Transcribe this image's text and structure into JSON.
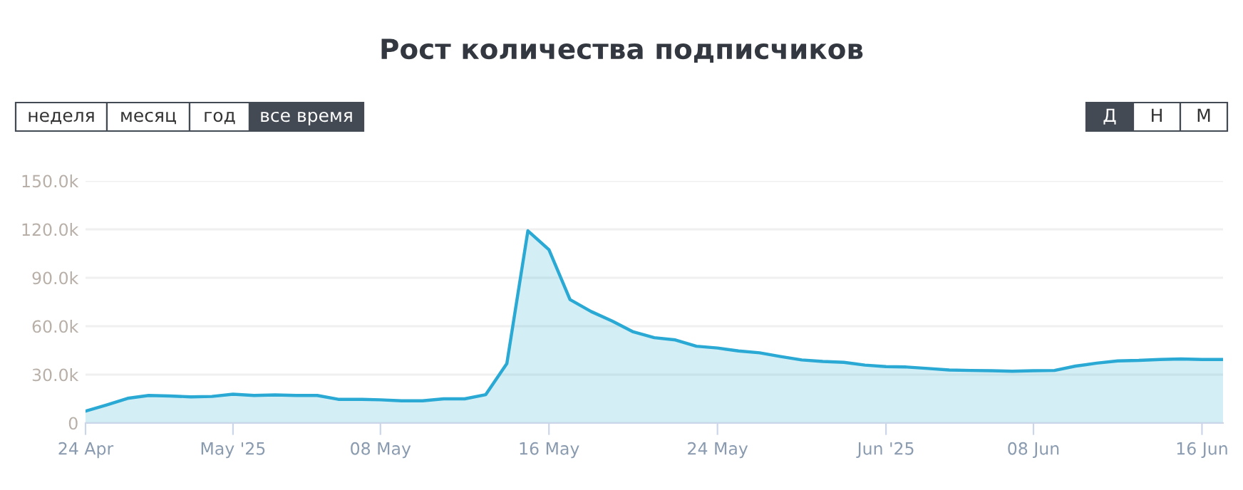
{
  "chart_data": {
    "type": "area",
    "title": "Рост количества подписчиков",
    "x": [
      "2025-04-24",
      "2025-04-25",
      "2025-04-26",
      "2025-04-27",
      "2025-04-28",
      "2025-04-29",
      "2025-04-30",
      "2025-05-01",
      "2025-05-02",
      "2025-05-03",
      "2025-05-04",
      "2025-05-05",
      "2025-05-06",
      "2025-05-07",
      "2025-05-08",
      "2025-05-09",
      "2025-05-10",
      "2025-05-11",
      "2025-05-12",
      "2025-05-13",
      "2025-05-14",
      "2025-05-15",
      "2025-05-16",
      "2025-05-17",
      "2025-05-18",
      "2025-05-19",
      "2025-05-20",
      "2025-05-21",
      "2025-05-22",
      "2025-05-23",
      "2025-05-24",
      "2025-05-25",
      "2025-05-26",
      "2025-05-27",
      "2025-05-28",
      "2025-05-29",
      "2025-05-30",
      "2025-05-31",
      "2025-06-01",
      "2025-06-02",
      "2025-06-03",
      "2025-06-04",
      "2025-06-05",
      "2025-06-06",
      "2025-06-07",
      "2025-06-08",
      "2025-06-09",
      "2025-06-10",
      "2025-06-11",
      "2025-06-12",
      "2025-06-13",
      "2025-06-14",
      "2025-06-15",
      "2025-06-16",
      "2025-06-17"
    ],
    "series": [
      {
        "color": "#29a9d3",
        "values": [
          7400,
          11200,
          15300,
          17100,
          16800,
          16200,
          16500,
          17900,
          17100,
          17400,
          17100,
          17100,
          14700,
          14700,
          14400,
          13800,
          13800,
          15000,
          15000,
          17600,
          36800,
          119100,
          107400,
          76500,
          69100,
          63200,
          56500,
          52900,
          51500,
          47600,
          46500,
          44700,
          43500,
          41200,
          39100,
          38200,
          37600,
          35900,
          35000,
          34700,
          33800,
          32900,
          32600,
          32400,
          32100,
          32400,
          32600,
          35300,
          37100,
          38500,
          38800,
          39400,
          39700,
          39400,
          39400
        ]
      }
    ],
    "xlim": [
      "2025-04-24",
      "2025-06-17"
    ],
    "xticks": [
      {
        "value": "2025-04-24",
        "label": "24 Apr"
      },
      {
        "value": "2025-05-01",
        "label": "May '25"
      },
      {
        "value": "2025-05-08",
        "label": "08 May"
      },
      {
        "value": "2025-05-16",
        "label": "16 May"
      },
      {
        "value": "2025-05-24",
        "label": "24 May"
      },
      {
        "value": "2025-06-01",
        "label": "Jun '25"
      },
      {
        "value": "2025-06-08",
        "label": "08 Jun"
      },
      {
        "value": "2025-06-16",
        "label": "16 Jun"
      }
    ],
    "ylim": [
      0,
      150000
    ],
    "yticks": [
      {
        "value": 0,
        "label": "0"
      },
      {
        "value": 30000,
        "label": "30.0k"
      },
      {
        "value": 60000,
        "label": "60.0k"
      },
      {
        "value": 90000,
        "label": "90.0k"
      },
      {
        "value": 120000,
        "label": "120.0k"
      },
      {
        "value": 150000,
        "label": "150.0k"
      }
    ],
    "grid": "y",
    "legend": false,
    "annotations": [
      "неделя",
      "месяц",
      "год",
      "все время",
      "Д",
      "Н",
      "М"
    ]
  }
}
